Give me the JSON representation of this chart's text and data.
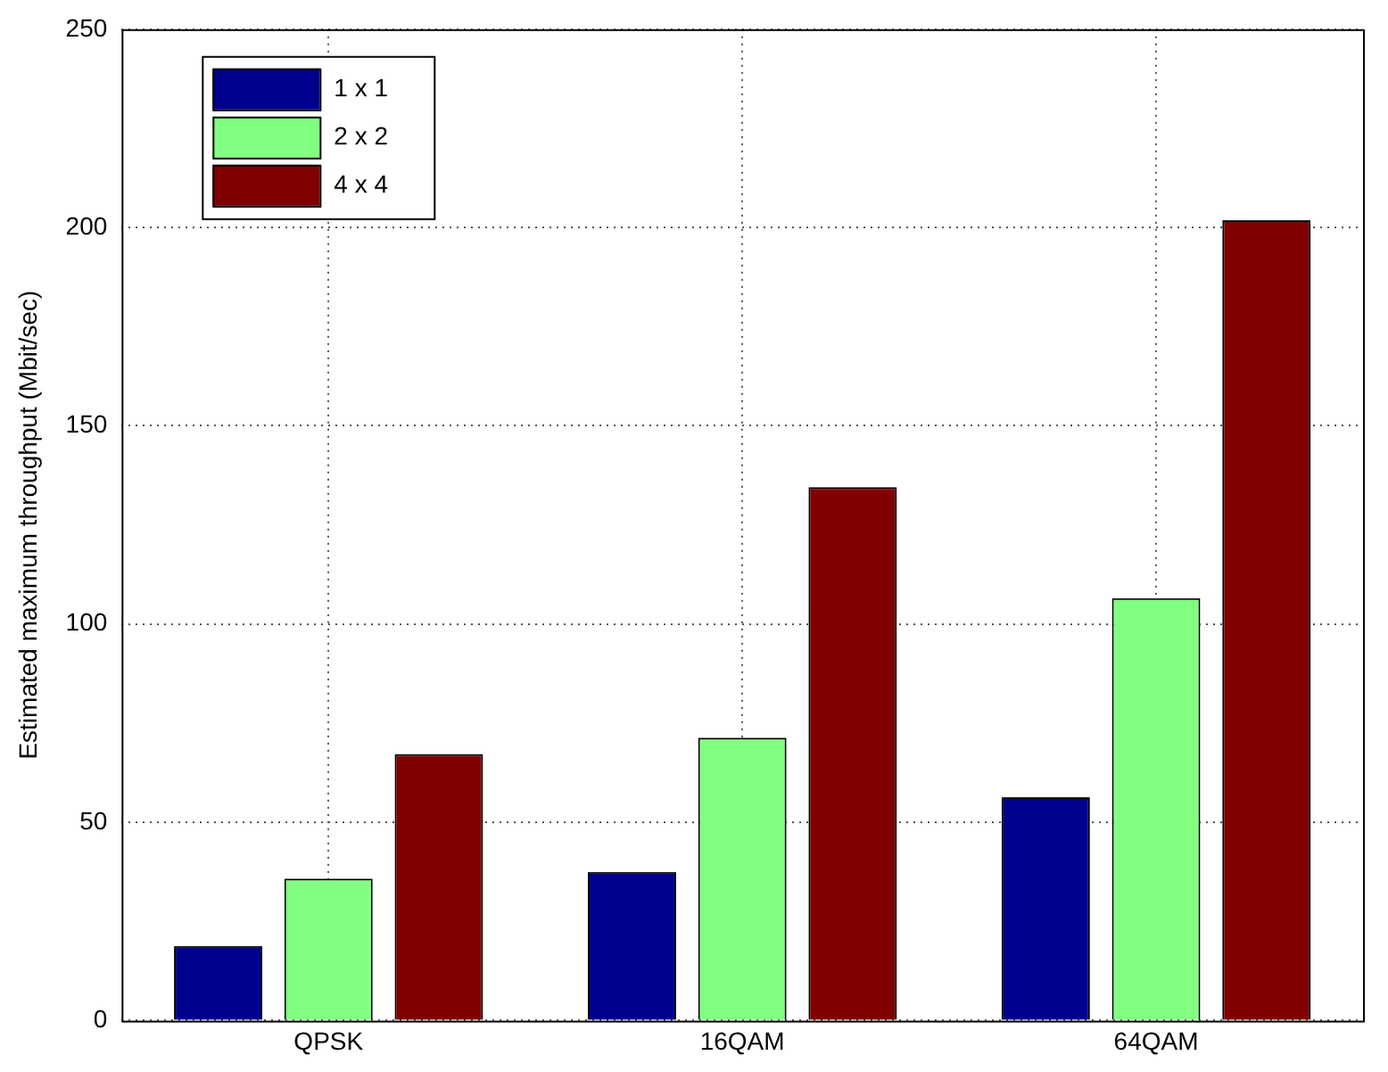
{
  "chart_data": {
    "type": "bar",
    "ylabel": "Estimated maximum throughput (Mbit/sec)",
    "categories": [
      "QPSK",
      "16QAM",
      "64QAM"
    ],
    "series": [
      {
        "name": "1 x 1",
        "color": "#00008f",
        "values": [
          18.8,
          37.5,
          56.3
        ]
      },
      {
        "name": "2 x 2",
        "color": "#80ff80",
        "values": [
          35.8,
          71.3,
          106.5
        ]
      },
      {
        "name": "4 x 4",
        "color": "#800000",
        "values": [
          67.2,
          134.5,
          201.8
        ]
      }
    ],
    "ylim": [
      0,
      250
    ],
    "yticks": [
      0,
      50,
      100,
      150,
      200,
      250
    ],
    "grid": true,
    "legend": "top left"
  }
}
